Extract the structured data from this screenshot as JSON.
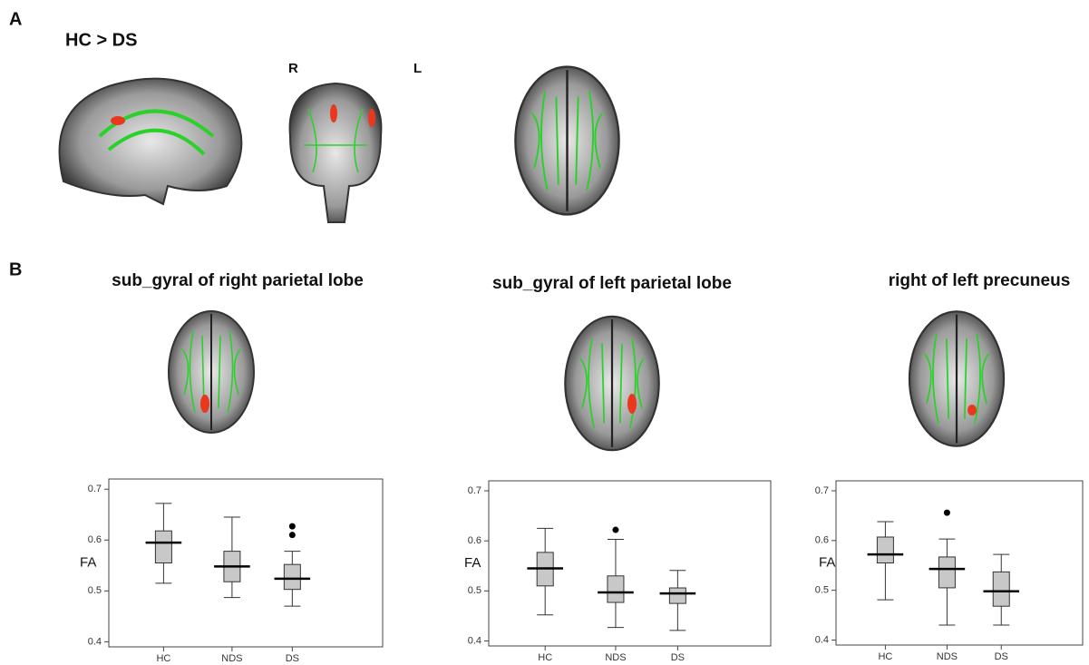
{
  "panel_a": {
    "label": "A",
    "contrast": "HC  > DS",
    "right": "R",
    "left": "L"
  },
  "panel_b": {
    "label": "B"
  },
  "chart_data": [
    {
      "type": "box",
      "title": "sub_gyral of right parietal lobe",
      "y_label": "FA",
      "categories": [
        "HC",
        "NDS",
        "DS"
      ],
      "color": "#c8c8c8",
      "whisker_low": [
        0.515,
        0.487,
        0.47
      ],
      "q1": [
        0.555,
        0.518,
        0.503
      ],
      "median": [
        0.595,
        0.548,
        0.524
      ],
      "q3": [
        0.618,
        0.578,
        0.552
      ],
      "whisker_high": [
        0.672,
        0.645,
        0.578
      ],
      "outliers": [
        [],
        [],
        [
          0.61,
          0.627
        ]
      ],
      "ylim": [
        0.39,
        0.72
      ],
      "yticks": [
        0.4,
        0.5,
        0.6,
        0.7
      ]
    },
    {
      "type": "box",
      "title": "sub_gyral of left parietal lobe",
      "y_label": "FA",
      "categories": [
        "HC",
        "NDS",
        "DS"
      ],
      "color": "#c8c8c8",
      "whisker_low": [
        0.452,
        0.427,
        0.421
      ],
      "q1": [
        0.51,
        0.477,
        0.475
      ],
      "median": [
        0.545,
        0.497,
        0.495
      ],
      "q3": [
        0.577,
        0.53,
        0.506
      ],
      "whisker_high": [
        0.625,
        0.603,
        0.541
      ],
      "outliers": [
        [],
        [
          0.622
        ],
        []
      ],
      "ylim": [
        0.39,
        0.72
      ],
      "yticks": [
        0.4,
        0.5,
        0.6,
        0.7
      ]
    },
    {
      "type": "box",
      "title": "right  of left precuneus",
      "y_label": "FA",
      "categories": [
        "HC",
        "NDS",
        "DS"
      ],
      "color": "#c8c8c8",
      "whisker_low": [
        0.481,
        0.43,
        0.43
      ],
      "q1": [
        0.555,
        0.505,
        0.468
      ],
      "median": [
        0.572,
        0.543,
        0.498
      ],
      "q3": [
        0.607,
        0.567,
        0.537
      ],
      "whisker_high": [
        0.638,
        0.603,
        0.572
      ],
      "outliers": [
        [],
        [
          0.656
        ],
        []
      ],
      "ylim": [
        0.39,
        0.72
      ],
      "yticks": [
        0.4,
        0.5,
        0.6,
        0.7
      ]
    }
  ]
}
